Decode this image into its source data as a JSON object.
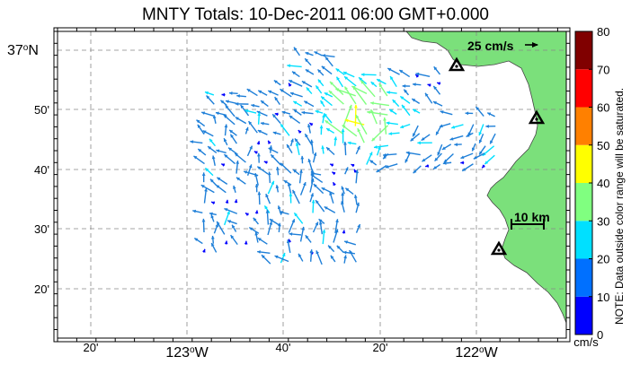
{
  "map": {
    "title": "MNTY Totals: 10-Dec-2011 06:00 GMT+0.000",
    "lat_labels": [
      {
        "text": "37°N",
        "major": true
      },
      {
        "text": "50'",
        "major": false
      },
      {
        "text": "40'",
        "major": false
      },
      {
        "text": "30'",
        "major": false
      },
      {
        "text": "20'",
        "major": false
      }
    ],
    "lon_labels": [
      {
        "text": "20'",
        "major": false
      },
      {
        "text": "123°W",
        "major": true
      },
      {
        "text": "40'",
        "major": false
      },
      {
        "text": "20'",
        "major": false
      },
      {
        "text": "122°W",
        "major": true
      }
    ],
    "reference_vector": "25 cm/s",
    "scale_bar": "10 km",
    "stations": [
      "station-north",
      "station-east",
      "station-south"
    ],
    "colors": {
      "land": "#7be07b",
      "vector_default": "#1e7fd8",
      "station": "#000000"
    }
  },
  "colorbar": {
    "ticks": [
      "80",
      "70",
      "60",
      "50",
      "40",
      "30",
      "20",
      "10",
      "0"
    ],
    "unit": "cm/s",
    "note": "NOTE: Data outside color range will be saturated.",
    "colors": [
      "#0000ff",
      "#0070ff",
      "#00e0ff",
      "#00ffe0",
      "#80ff80",
      "#ffff00",
      "#ff8000",
      "#ff0000",
      "#800000"
    ]
  }
}
